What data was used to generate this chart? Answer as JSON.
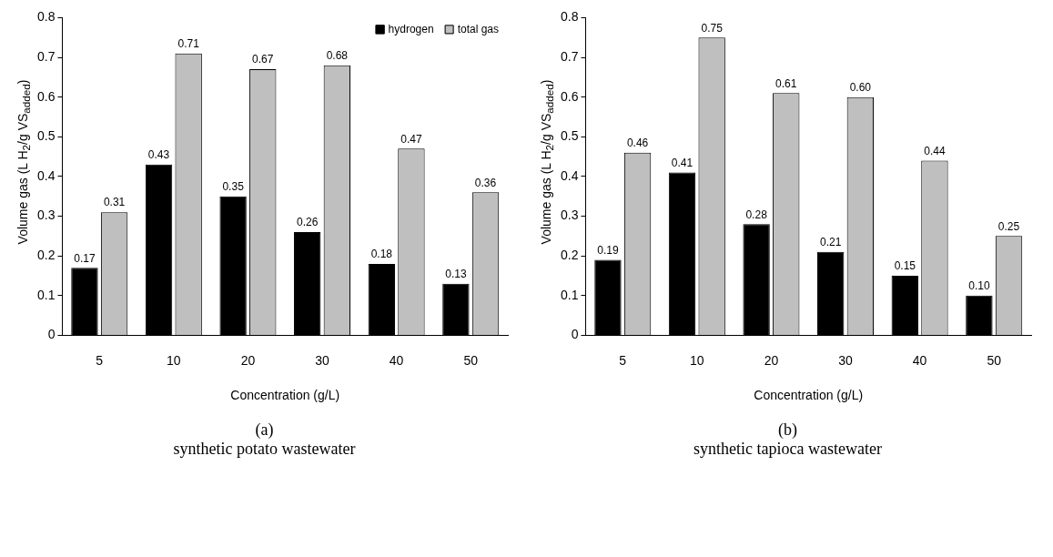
{
  "chart_data": [
    {
      "type": "bar",
      "title": "(a)",
      "subtitle": "synthetic potato wastewater",
      "xlabel": "Concentration (g/L)",
      "ylabel": "Volume gas (L H$_{2}$/g VS$_{added}$)",
      "categories": [
        "5",
        "10",
        "20",
        "30",
        "40",
        "50"
      ],
      "series": [
        {
          "name": "hydrogen",
          "color": "#000000",
          "values": [
            0.17,
            0.43,
            0.35,
            0.26,
            0.18,
            0.13
          ],
          "value_labels": [
            "0.17",
            "0.43",
            "0.35",
            "0.26",
            "0.18",
            "0.13"
          ]
        },
        {
          "name": "total gas",
          "color": "#bfbfbf",
          "values": [
            0.31,
            0.71,
            0.67,
            0.68,
            0.47,
            0.36
          ],
          "value_labels": [
            "0.31",
            "0.71",
            "0.67",
            "0.68",
            "0.47",
            "0.36"
          ]
        }
      ],
      "ylim": [
        0,
        0.8
      ],
      "yticks": [
        0,
        0.1,
        0.2,
        0.3,
        0.4,
        0.5,
        0.6,
        0.7,
        0.8
      ],
      "grid": false,
      "legend": "top right"
    },
    {
      "type": "bar",
      "title": "(b)",
      "subtitle": "synthetic tapioca wastewater",
      "xlabel": "Concentration (g/L)",
      "ylabel": "Volume gas (L H$_{2}$/g VS$_{added}$)",
      "categories": [
        "5",
        "10",
        "20",
        "30",
        "40",
        "50"
      ],
      "series": [
        {
          "color": "#000000",
          "values": [
            0.19,
            0.41,
            0.28,
            0.21,
            0.15,
            0.1
          ],
          "value_labels": [
            "0.19",
            "0.41",
            "0.28",
            "0.21",
            "0.15",
            "0.10"
          ]
        },
        {
          "color": "#bfbfbf",
          "values": [
            0.46,
            0.75,
            0.61,
            0.6,
            0.44,
            0.25
          ],
          "value_labels": [
            "0.46",
            "0.75",
            "0.61",
            "0.60",
            "0.44",
            "0.25"
          ]
        }
      ],
      "ylim": [
        0,
        0.8
      ],
      "yticks": [
        0,
        0.1,
        0.2,
        0.3,
        0.4,
        0.5,
        0.6,
        0.7,
        0.8
      ],
      "grid": false,
      "legend": false
    }
  ]
}
